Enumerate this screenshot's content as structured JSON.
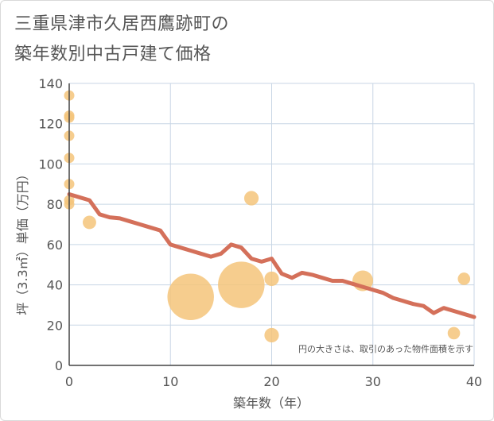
{
  "title_lines": [
    "三重県津市久居西鷹跡町の",
    "築年数別中古戸建て価格"
  ],
  "chart_data": {
    "type": "scatter",
    "title": "三重県津市久居西鷹跡町の築年数別中古戸建て価格",
    "xlabel": "築年数（年）",
    "ylabel": "坪（3.3㎡）単価（万円）",
    "xlim": [
      0,
      40
    ],
    "ylim": [
      0,
      140
    ],
    "x_ticks": [
      0,
      10,
      20,
      30,
      40
    ],
    "y_ticks": [
      0,
      20,
      40,
      60,
      80,
      100,
      120,
      140
    ],
    "grid": true,
    "note": "円の大きさは、取引のあった物件面積を示す",
    "colors": {
      "points": "#f5c47a",
      "line": "#d4705a",
      "grid": "#c8d6e5",
      "text": "#555555"
    },
    "points": [
      {
        "x": 0,
        "y": 134,
        "size": 1
      },
      {
        "x": 0,
        "y": 124,
        "size": 1
      },
      {
        "x": 0,
        "y": 123,
        "size": 1
      },
      {
        "x": 0,
        "y": 114,
        "size": 1
      },
      {
        "x": 0,
        "y": 103,
        "size": 1
      },
      {
        "x": 0,
        "y": 90,
        "size": 1
      },
      {
        "x": 0,
        "y": 82,
        "size": 1
      },
      {
        "x": 0,
        "y": 80,
        "size": 1
      },
      {
        "x": 2,
        "y": 71,
        "size": 1.3
      },
      {
        "x": 12,
        "y": 34,
        "size": 4.5
      },
      {
        "x": 17,
        "y": 40,
        "size": 4.5
      },
      {
        "x": 18,
        "y": 83,
        "size": 1.4
      },
      {
        "x": 20,
        "y": 43,
        "size": 1.4
      },
      {
        "x": 20,
        "y": 15,
        "size": 1.4
      },
      {
        "x": 29,
        "y": 42,
        "size": 2
      },
      {
        "x": 38,
        "y": 16,
        "size": 1.2
      },
      {
        "x": 39,
        "y": 43,
        "size": 1.2
      }
    ],
    "trend_line": {
      "x": [
        0,
        1,
        2,
        3,
        4,
        5,
        6,
        7,
        8,
        9,
        10,
        11,
        12,
        13,
        14,
        15,
        16,
        17,
        18,
        19,
        20,
        21,
        22,
        23,
        24,
        25,
        26,
        27,
        28,
        29,
        30,
        31,
        32,
        33,
        34,
        35,
        36,
        37,
        38,
        39,
        40
      ],
      "y": [
        85,
        83.5,
        82,
        75,
        73.5,
        73,
        71.5,
        70,
        68.5,
        67,
        60,
        58.5,
        57,
        55.5,
        54,
        55.5,
        60,
        58.5,
        53,
        51.5,
        53,
        45.5,
        43.5,
        46,
        45,
        43.5,
        42,
        42,
        40.5,
        39,
        37.5,
        36,
        33.5,
        32,
        30.5,
        29.5,
        26,
        28.5,
        27,
        25.5,
        24
      ]
    }
  }
}
